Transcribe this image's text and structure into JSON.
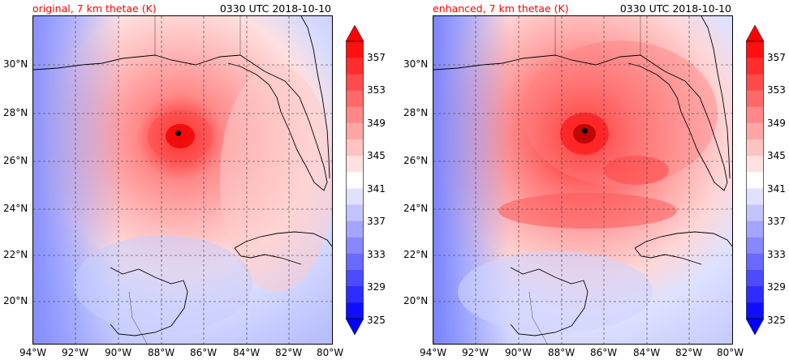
{
  "panels": [
    {
      "id": "original",
      "title_left": "original, 7 km thetae (K)",
      "title_right": "0330 UTC 2018-10-10",
      "storm_center": {
        "lon": -87.2,
        "lat": 27.0
      }
    },
    {
      "id": "enhanced",
      "title_left": "enhanced, 7 km thetae (K)",
      "title_right": "0330 UTC 2018-10-10",
      "storm_center": {
        "lon": -86.9,
        "lat": 27.1
      }
    }
  ],
  "map": {
    "lon_range": [
      -94,
      -80
    ],
    "lat_range": [
      18,
      32
    ],
    "lon_ticks": [
      "94°W",
      "92°W",
      "90°W",
      "88°W",
      "86°W",
      "84°W",
      "82°W",
      "80°W"
    ],
    "lat_ticks": [
      "30°N",
      "28°N",
      "26°N",
      "24°N",
      "22°N",
      "20°N"
    ],
    "grid": true
  },
  "colorbar": {
    "range": [
      325,
      359
    ],
    "labels": [
      "357",
      "353",
      "349",
      "345",
      "341",
      "337",
      "333",
      "329",
      "325"
    ],
    "colors": {
      "low": "#0000ff",
      "mid": "#ffffff",
      "high": "#ff0000"
    }
  }
}
